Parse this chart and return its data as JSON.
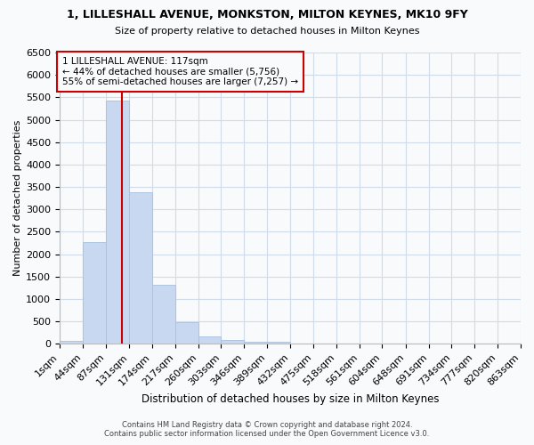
{
  "title1": "1, LILLESHALL AVENUE, MONKSTON, MILTON KEYNES, MK10 9FY",
  "title2": "Size of property relative to detached houses in Milton Keynes",
  "xlabel": "Distribution of detached houses by size in Milton Keynes",
  "ylabel": "Number of detached properties",
  "footer1": "Contains HM Land Registry data © Crown copyright and database right 2024.",
  "footer2": "Contains public sector information licensed under the Open Government Licence v3.0.",
  "bar_color": "#c8d8f0",
  "bar_edgecolor": "#a8c0dc",
  "grid_color": "#d0dcea",
  "annotation_line1": "1 LILLESHALL AVENUE: 117sqm",
  "annotation_line2": "← 44% of detached houses are smaller (5,756)",
  "annotation_line3": "55% of semi-detached houses are larger (7,257) →",
  "property_size": 117,
  "bin_edges": [
    1,
    44,
    87,
    131,
    174,
    217,
    260,
    303,
    346,
    389,
    432,
    475,
    518,
    561,
    604,
    648,
    691,
    734,
    777,
    820,
    863
  ],
  "bar_heights": [
    75,
    2280,
    5430,
    3380,
    1310,
    480,
    165,
    80,
    55,
    40,
    0,
    0,
    0,
    0,
    0,
    0,
    0,
    0,
    0,
    0
  ],
  "ylim_max": 6500,
  "ytick_step": 500,
  "vline_color": "#cc0000",
  "background_color": "#f8fafc",
  "ann_box_color": "#cc0000",
  "text_color": "#000000"
}
